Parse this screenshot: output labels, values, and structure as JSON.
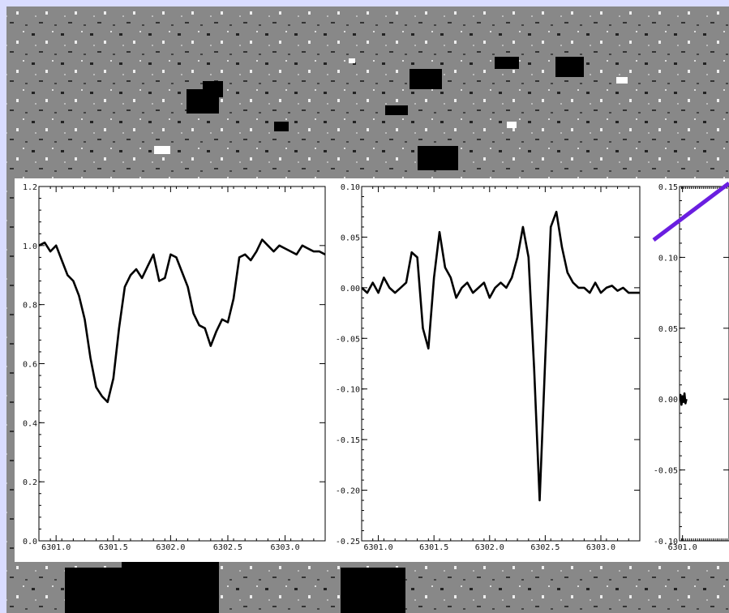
{
  "colors": {
    "page_bg": "#d9dcff",
    "magnetogram_gray": "#8a8a8a",
    "panel_bg": "#ffffff",
    "curve": "#000000",
    "accent_line": "#6a1ee0"
  },
  "chart_data": [
    {
      "type": "line",
      "xlim": [
        6300.85,
        6303.35
      ],
      "ylim": [
        0.0,
        1.2
      ],
      "xticks": [
        "6301.0",
        "6301.5",
        "6302.0",
        "6302.5",
        "6303.0"
      ],
      "yticks": [
        "0.0",
        "0.2",
        "0.4",
        "0.6",
        "0.8",
        "1.0",
        "1.2"
      ],
      "ytick_values": [
        0.0,
        0.2,
        0.4,
        0.6,
        0.8,
        1.0,
        1.2
      ],
      "series": [
        {
          "x": [
            6300.85,
            6300.9,
            6300.95,
            6301.0,
            6301.05,
            6301.1,
            6301.15,
            6301.2,
            6301.25,
            6301.3,
            6301.35,
            6301.4,
            6301.45,
            6301.5,
            6301.55,
            6301.6,
            6301.65,
            6301.7,
            6301.75,
            6301.8,
            6301.85,
            6301.9,
            6301.95,
            6302.0,
            6302.05,
            6302.1,
            6302.15,
            6302.2,
            6302.25,
            6302.3,
            6302.35,
            6302.4,
            6302.45,
            6302.5,
            6302.55,
            6302.6,
            6302.65,
            6302.7,
            6302.75,
            6302.8,
            6302.85,
            6302.9,
            6302.95,
            6303.0,
            6303.05,
            6303.1,
            6303.15,
            6303.2,
            6303.25,
            6303.3,
            6303.35
          ],
          "values": [
            1.0,
            1.01,
            0.98,
            1.0,
            0.95,
            0.9,
            0.88,
            0.83,
            0.75,
            0.62,
            0.52,
            0.49,
            0.47,
            0.55,
            0.72,
            0.86,
            0.9,
            0.92,
            0.89,
            0.93,
            0.97,
            0.88,
            0.89,
            0.97,
            0.96,
            0.91,
            0.86,
            0.77,
            0.73,
            0.72,
            0.66,
            0.71,
            0.75,
            0.74,
            0.82,
            0.96,
            0.97,
            0.95,
            0.98,
            1.02,
            1.0,
            0.98,
            1.0,
            0.99,
            0.98,
            0.97,
            1.0,
            0.99,
            0.98,
            0.98,
            0.97
          ]
        }
      ]
    },
    {
      "type": "line",
      "xlim": [
        6300.85,
        6303.35
      ],
      "ylim": [
        -0.25,
        0.1
      ],
      "xticks": [
        "6301.0",
        "6301.5",
        "6302.0",
        "6302.5",
        "6303.0"
      ],
      "yticks": [
        "-0.25",
        "-0.20",
        "-0.15",
        "-0.10",
        "-0.05",
        "0.00",
        "0.05",
        "0.10"
      ],
      "ytick_values": [
        -0.25,
        -0.2,
        -0.15,
        -0.1,
        -0.05,
        0.0,
        0.05,
        0.1
      ],
      "series": [
        {
          "x": [
            6300.85,
            6300.9,
            6300.95,
            6301.0,
            6301.05,
            6301.1,
            6301.15,
            6301.2,
            6301.25,
            6301.3,
            6301.35,
            6301.4,
            6301.45,
            6301.5,
            6301.55,
            6301.6,
            6301.65,
            6301.7,
            6301.75,
            6301.8,
            6301.85,
            6301.9,
            6301.95,
            6302.0,
            6302.05,
            6302.1,
            6302.15,
            6302.2,
            6302.25,
            6302.3,
            6302.35,
            6302.4,
            6302.45,
            6302.5,
            6302.55,
            6302.6,
            6302.65,
            6302.7,
            6302.75,
            6302.8,
            6302.85,
            6302.9,
            6302.95,
            6303.0,
            6303.05,
            6303.1,
            6303.15,
            6303.2,
            6303.25,
            6303.3,
            6303.35
          ],
          "values": [
            0.0,
            -0.005,
            0.005,
            -0.005,
            0.01,
            0.0,
            -0.005,
            0.0,
            0.005,
            0.035,
            0.03,
            -0.04,
            -0.06,
            0.01,
            0.055,
            0.02,
            0.01,
            -0.01,
            0.0,
            0.005,
            -0.005,
            0.0,
            0.005,
            -0.01,
            0.0,
            0.005,
            0.0,
            0.01,
            0.03,
            0.06,
            0.03,
            -0.08,
            -0.21,
            -0.07,
            0.06,
            0.075,
            0.04,
            0.015,
            0.005,
            0.0,
            0.0,
            -0.005,
            0.005,
            -0.005,
            0.0,
            0.002,
            -0.003,
            0.0,
            -0.005,
            -0.005,
            -0.005
          ]
        }
      ]
    },
    {
      "type": "line",
      "xlim": [
        6300.85,
        6303.35
      ],
      "ylim": [
        -0.1,
        0.15
      ],
      "xticks": [
        "6301.0"
      ],
      "yticks": [
        "-0.10",
        "-0.05",
        "0.00",
        "0.05",
        "0.10",
        "0.15"
      ],
      "ytick_values": [
        -0.1,
        -0.05,
        0.0,
        0.05,
        0.1,
        0.15
      ],
      "series": [
        {
          "x": [
            6300.85,
            6300.9,
            6300.95,
            6301.0,
            6301.05,
            6301.1,
            6301.15,
            6301.2
          ],
          "values": [
            0.0,
            0.003,
            -0.004,
            0.002,
            -0.002,
            0.004,
            -0.003,
            0.0
          ]
        }
      ]
    }
  ]
}
